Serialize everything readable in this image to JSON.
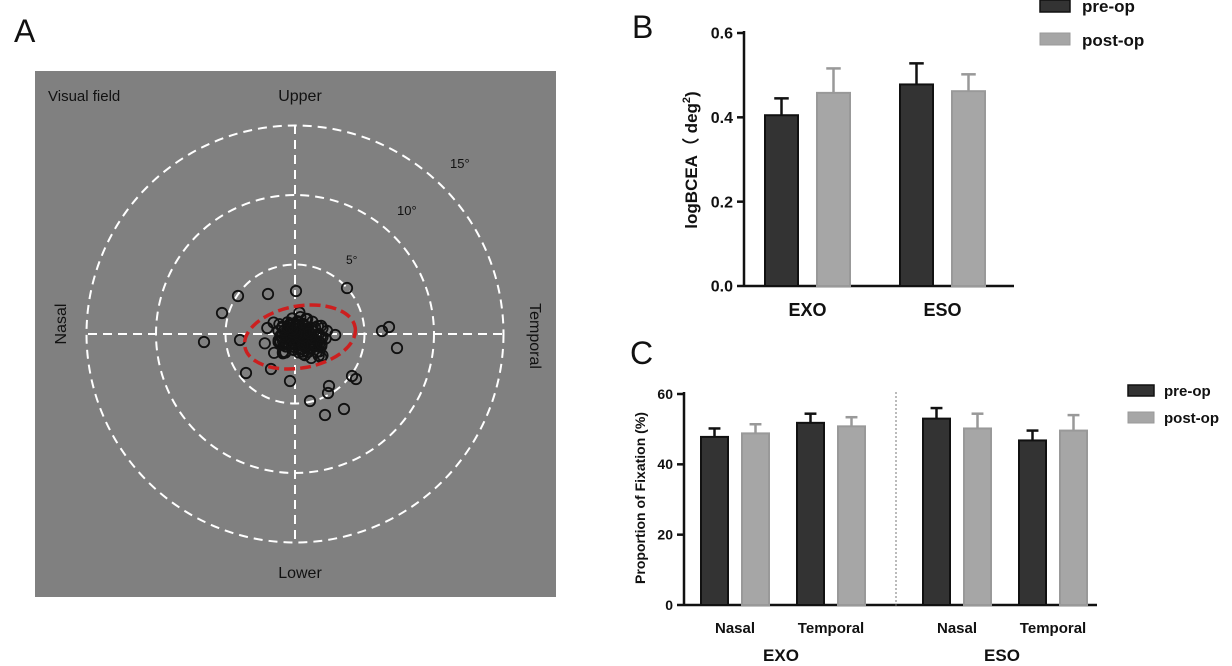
{
  "colors": {
    "pre_op": "#333333",
    "post_op": "#a6a6a6",
    "panel_bg": "#808080",
    "ellipse": "#cc1f1f"
  },
  "panel_a": {
    "letter": "A",
    "field_label": "Visual field",
    "upper": "Upper",
    "lower": "Lower",
    "nasal": "Nasal",
    "temporal": "Temporal",
    "rings": [
      {
        "deg": 5,
        "label": "5°"
      },
      {
        "deg": 10,
        "label": "10°"
      },
      {
        "deg": 15,
        "label": "15°"
      }
    ]
  },
  "panel_b": {
    "letter": "B"
  },
  "panel_c": {
    "letter": "C"
  },
  "chart_data": [
    {
      "type": "bar",
      "panel": "B",
      "ylabel": "logBCEA（ deg²)",
      "ylabel_parts": {
        "main": "logBCEA（ deg",
        "sup": "2",
        "tail": ")"
      },
      "ylim": [
        0,
        0.6
      ],
      "yticks": [
        "0.0",
        "0.2",
        "0.4",
        "0.6"
      ],
      "categories": [
        "EXO",
        "ESO"
      ],
      "legend_position": "top-right",
      "series": [
        {
          "name": "pre-op",
          "values": [
            0.405,
            0.478
          ],
          "errors": [
            0.04,
            0.05
          ]
        },
        {
          "name": "post-op",
          "values": [
            0.458,
            0.462
          ],
          "errors": [
            0.058,
            0.04
          ]
        }
      ]
    },
    {
      "type": "bar",
      "panel": "C",
      "ylabel": "Proportion of Fixation (%)",
      "ylim": [
        0,
        60
      ],
      "yticks": [
        "0",
        "20",
        "40",
        "60"
      ],
      "groups": [
        "EXO",
        "ESO"
      ],
      "categories": [
        "Nasal",
        "Temporal",
        "Nasal",
        "Temporal"
      ],
      "legend_position": "top-right",
      "series": [
        {
          "name": "pre-op",
          "values": [
            47.8,
            51.8,
            53.0,
            46.8
          ],
          "errors": [
            2.4,
            2.6,
            3.0,
            2.8
          ]
        },
        {
          "name": "post-op",
          "values": [
            48.8,
            50.8,
            50.2,
            49.6
          ],
          "errors": [
            2.6,
            2.6,
            4.2,
            4.4
          ]
        }
      ]
    }
  ]
}
